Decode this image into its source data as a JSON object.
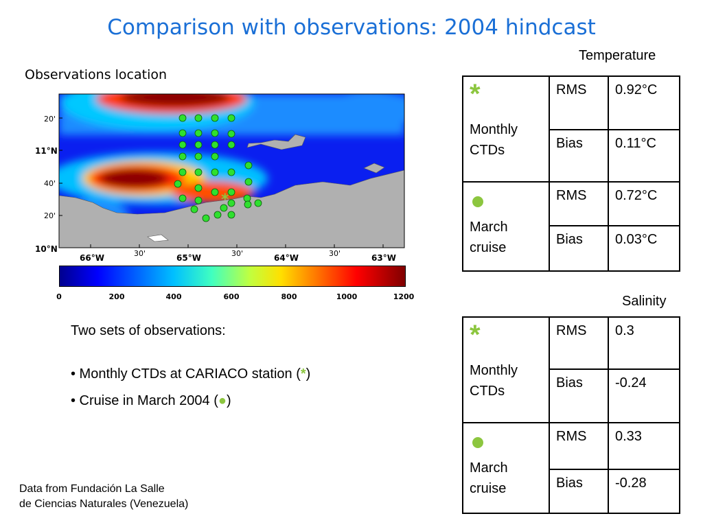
{
  "title": "Comparison with observations: 2004 hindcast",
  "map": {
    "heading": "Observations location",
    "lat_labels": [
      "20'",
      "11°N",
      "40'",
      "20'",
      "10°N"
    ],
    "lon_labels": [
      "66°W",
      "30'",
      "65°W",
      "30'",
      "64°W",
      "30'",
      "63°W"
    ],
    "colorbar_ticks": [
      "0",
      "200",
      "400",
      "600",
      "800",
      "1000",
      "1200"
    ]
  },
  "bullets": {
    "intro": "Two sets of observations:",
    "item1_prefix": "• Monthly CTDs at CARIACO station (",
    "item1_symbol": "*",
    "item1_suffix": ")",
    "item2_prefix": "• Cruise in March 2004 (",
    "item2_symbol": "●",
    "item2_suffix": ")"
  },
  "credit": {
    "line1": "Data from Fundación La Salle",
    "line2": "de Ciencias Naturales (Venezuela)"
  },
  "temperature": {
    "label": "Temperature",
    "monthly_symbol": "*",
    "monthly_label": "Monthly CTDs",
    "monthly_rms_label": "RMS",
    "monthly_rms": "0.92°C",
    "monthly_bias_label": "Bias",
    "monthly_bias": "0.11°C",
    "march_label": "March cruise",
    "march_rms_label": "RMS",
    "march_rms": "0.72°C",
    "march_bias_label": "Bias",
    "march_bias": "0.03°C"
  },
  "salinity": {
    "label": "Salinity",
    "monthly_symbol": "*",
    "monthly_label": "Monthly CTDs",
    "monthly_rms_label": "RMS",
    "monthly_rms": "0.3",
    "monthly_bias_label": "Bias",
    "monthly_bias": "-0.24",
    "march_label": "March cruise",
    "march_rms_label": "RMS",
    "march_rms": "0.33",
    "march_bias_label": "Bias",
    "march_bias": "-0.28"
  },
  "colors": {
    "title": "#1a6fd6",
    "marker": "#8cc63f",
    "land": "#b0b0b0"
  }
}
